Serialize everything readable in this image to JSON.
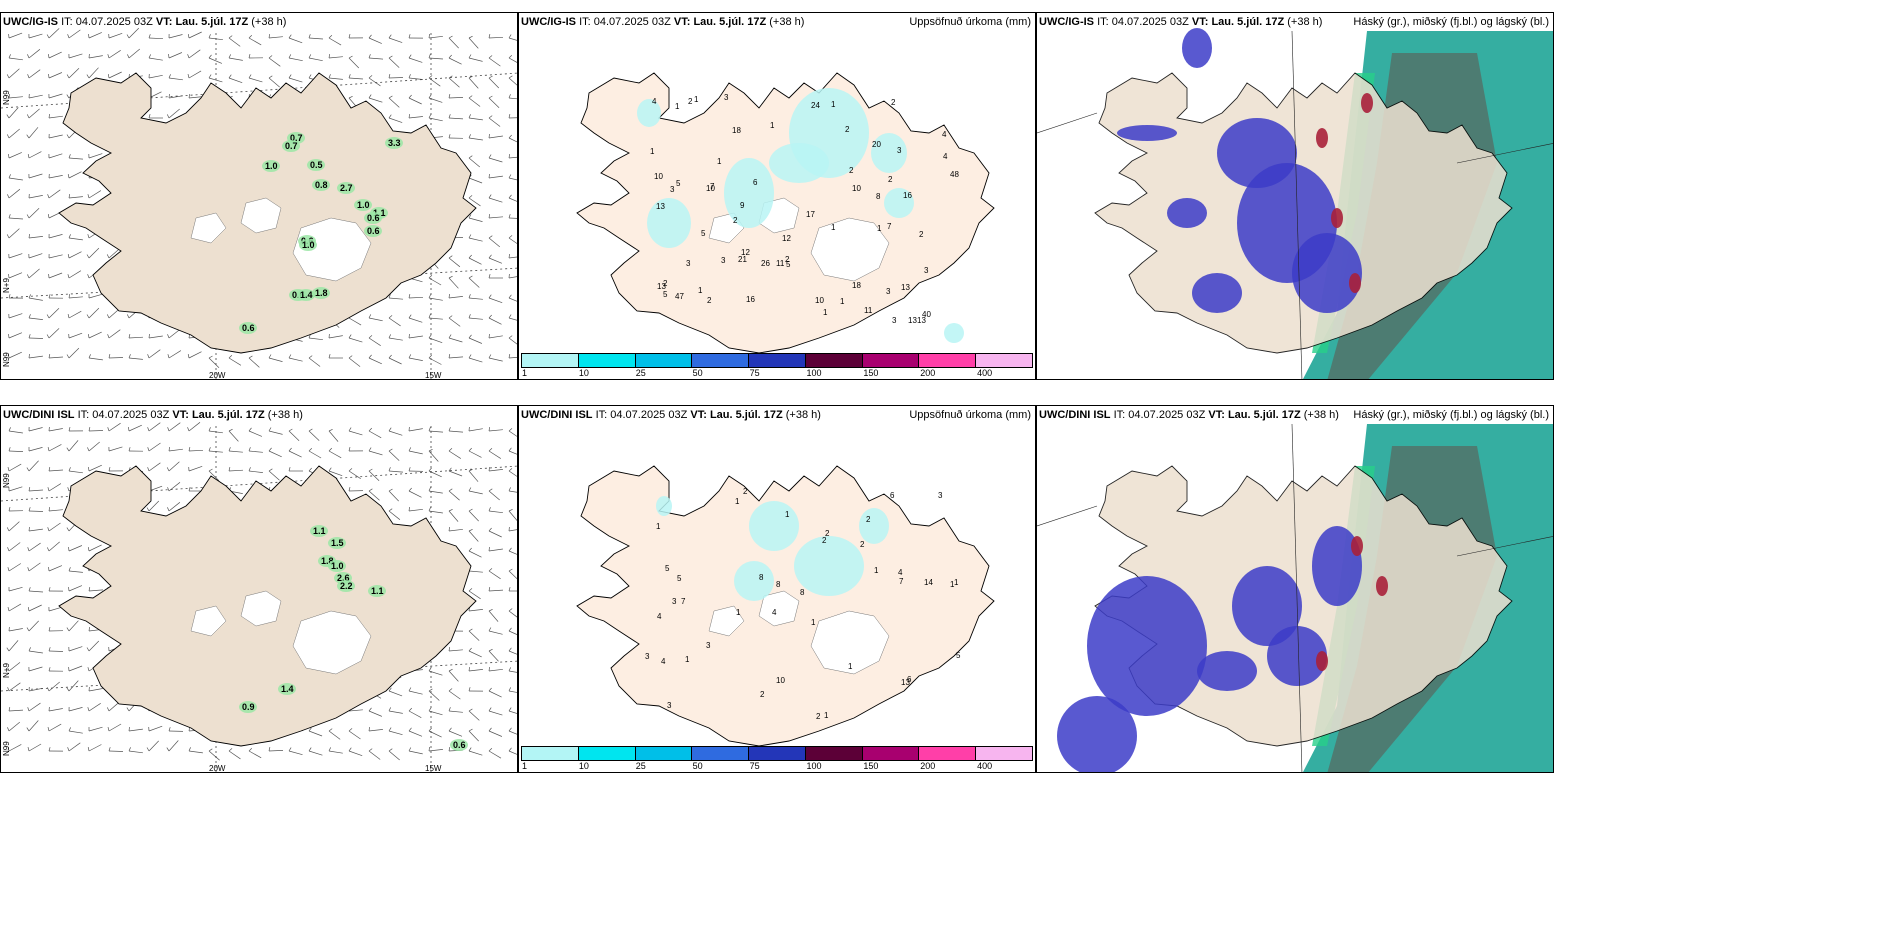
{
  "rows": [
    {
      "model": "UWC/IG-IS",
      "it_label": "IT:",
      "it_value": "04.07.2025 03Z",
      "vt_label": "VT: Lau. 5.júl. 17Z",
      "lead": "(+38 h)",
      "precip_numbers": [
        "12",
        "10",
        "2",
        "7",
        "13",
        "18",
        "11",
        "2",
        "21",
        "8",
        "16",
        "24",
        "4",
        "3",
        "9",
        "18",
        "17",
        "48",
        "4",
        "6",
        "13",
        "7",
        "1",
        "3",
        "13",
        "10",
        "10",
        "2",
        "3",
        "13",
        "12",
        "26",
        "47",
        "3",
        "20",
        "10",
        "5",
        "1",
        "5",
        "16",
        "13",
        "40",
        "2",
        "11",
        "5",
        "5",
        "2",
        "1",
        "3",
        "2",
        "1",
        "2",
        "1",
        "2",
        "4",
        "2",
        "2",
        "1",
        "3",
        "1",
        "1",
        "1",
        "1",
        "1",
        "3",
        "3"
      ],
      "wind_numbers": [
        "0.7",
        "0.7",
        "1.0",
        "0.5",
        "0.8",
        "2.7",
        "1.0",
        "1.1",
        "0.6",
        "0.6",
        "0.6",
        "1.0",
        "0.6",
        "1.4",
        "1.8",
        "0.6",
        "3.3"
      ]
    },
    {
      "model": "UWC/DINI ISL",
      "it_label": "IT:",
      "it_value": "04.07.2025 03Z",
      "vt_label": "VT: Lau. 5.júl. 17Z",
      "lead": "(+38 h)",
      "precip_numbers": [
        "2",
        "2",
        "1",
        "4",
        "1",
        "7",
        "1",
        "2",
        "4",
        "2",
        "8",
        "3",
        "1",
        "1",
        "2",
        "1",
        "10",
        "6",
        "1",
        "3",
        "5",
        "3",
        "1",
        "14",
        "3",
        "5",
        "8",
        "7",
        "6",
        "4",
        "13",
        "2",
        "1",
        "8",
        "1",
        "5",
        "4",
        "2",
        "3",
        "1"
      ],
      "wind_numbers": [
        "1.1",
        "1.5",
        "1.8",
        "1.0",
        "2.6",
        "2.2",
        "1.1",
        "0.9",
        "1.4",
        "0.6"
      ]
    }
  ],
  "wind_axis_labels": {
    "lat_top": "N99",
    "lat_mid": "N+9",
    "lat_bottom": "N99",
    "lon_left": "20W",
    "lon_right": "15W"
  },
  "precip_panel": {
    "title_right": "Uppsöfnuð úrkoma (mm)",
    "colorbar": {
      "ticks": [
        "1",
        "10",
        "25",
        "50",
        "75",
        "100",
        "150",
        "200",
        "400"
      ],
      "colors": [
        "#b3f5f5",
        "#00e5ef",
        "#00bfe8",
        "#2f6be0",
        "#2336b8",
        "#5c0037",
        "#a8006f",
        "#ff3fa8",
        "#f7b5ef"
      ]
    }
  },
  "cloud_panel": {
    "title_right": "Háský (gr.), miðský (fj.bl.) og lágský (bl.)",
    "colors": {
      "low": "#3c3cc8",
      "mid_teal": "#1fa597",
      "high_gray": "#566b63",
      "green": "#28d08a",
      "red": "#a8203a"
    }
  },
  "colors": {
    "land": "#ede0d0",
    "land_precip": "#fdeee2",
    "coast": "#000000",
    "cyan": "#b8f4f4"
  }
}
